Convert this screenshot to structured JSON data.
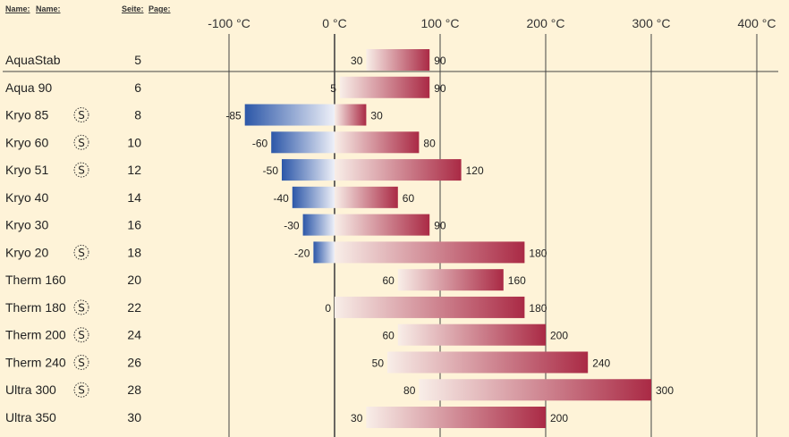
{
  "header": {
    "name_label": "Name:",
    "name_label2": "Name:",
    "page_label": "Seite:",
    "page_label2": "Page:"
  },
  "badge_symbol": "S",
  "colors": {
    "background": "#fef3d8",
    "warm_start": "#f8eee8",
    "warm_end": "#aa2a45",
    "cold_start": "#eef0f8",
    "cold_end": "#2c57a8",
    "axis_line": "#444444"
  },
  "chart_data": {
    "type": "bar",
    "orientation": "horizontal-range",
    "xlim": [
      -100,
      400
    ],
    "x_ticks": [
      -100,
      0,
      100,
      200,
      300,
      400
    ],
    "x_tick_labels": [
      "-100 °C",
      "0 °C",
      "100 °C",
      "200 °C",
      "300 °C",
      "400 °C"
    ],
    "grid": "vertical lines at ticks",
    "rows": [
      {
        "name": "AquaStab",
        "page": "5",
        "min": 30,
        "max": 90,
        "min_label": "30",
        "max_label": "90",
        "badge": false
      },
      {
        "name": "Aqua 90",
        "page": "6",
        "min": 5,
        "max": 90,
        "min_label": "5",
        "max_label": "90",
        "badge": false
      },
      {
        "name": "Kryo 85",
        "page": "8",
        "min": -85,
        "max": 30,
        "min_label": "-85",
        "max_label": "30",
        "badge": true
      },
      {
        "name": "Kryo 60",
        "page": "10",
        "min": -60,
        "max": 80,
        "min_label": "-60",
        "max_label": "80",
        "badge": true
      },
      {
        "name": "Kryo 51",
        "page": "12",
        "min": -50,
        "max": 120,
        "min_label": "-50",
        "max_label": "120",
        "badge": true
      },
      {
        "name": "Kryo 40",
        "page": "14",
        "min": -40,
        "max": 60,
        "min_label": "-40",
        "max_label": "60",
        "badge": false
      },
      {
        "name": "Kryo 30",
        "page": "16",
        "min": -30,
        "max": 90,
        "min_label": "-30",
        "max_label": "90",
        "badge": false
      },
      {
        "name": "Kryo 20",
        "page": "18",
        "min": -20,
        "max": 180,
        "min_label": "-20",
        "max_label": "180",
        "badge": true
      },
      {
        "name": "Therm 160",
        "page": "20",
        "min": 60,
        "max": 160,
        "min_label": "60",
        "max_label": "160",
        "badge": false
      },
      {
        "name": "Therm 180",
        "page": "22",
        "min": 0,
        "max": 180,
        "min_label": "0",
        "max_label": "180",
        "badge": true
      },
      {
        "name": "Therm 200",
        "page": "24",
        "min": 60,
        "max": 200,
        "min_label": "60",
        "max_label": "200",
        "badge": true
      },
      {
        "name": "Therm 240",
        "page": "26",
        "min": 50,
        "max": 240,
        "min_label": "50",
        "max_label": "240",
        "badge": true
      },
      {
        "name": "Ultra 300",
        "page": "28",
        "min": 80,
        "max": 300,
        "min_label": "80",
        "max_label": "300",
        "badge": true
      },
      {
        "name": "Ultra 350",
        "page": "30",
        "min": 30,
        "max": 200,
        "min_label": "30",
        "max_label": "200",
        "badge": false
      }
    ]
  }
}
